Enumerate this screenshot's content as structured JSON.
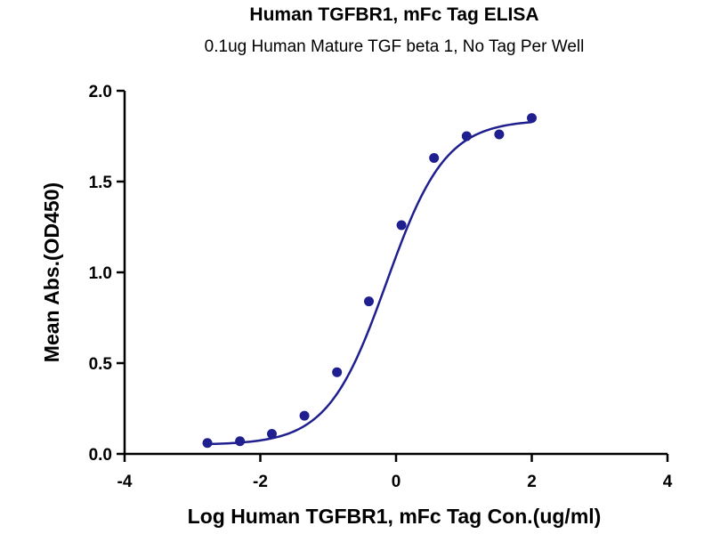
{
  "chart_data": {
    "type": "scatter",
    "title": "Human TGFBR1, mFc Tag ELISA",
    "subtitle": "0.1ug Human Mature TGF beta 1, No Tag Per Well",
    "xlabel": "Log Human TGFBR1, mFc Tag Con.(ug/ml)",
    "ylabel": "Mean Abs.(OD450)",
    "xlim": [
      -4,
      4
    ],
    "ylim": [
      0,
      2
    ],
    "xticks": [
      -4,
      -2,
      0,
      2,
      4
    ],
    "xtick_labels": [
      "-4",
      "-2",
      "0",
      "2",
      "4"
    ],
    "yticks": [
      0,
      0.5,
      1,
      1.5,
      2
    ],
    "ytick_labels": [
      "0.0",
      "0.5",
      "1.0",
      "1.5",
      "2.0"
    ],
    "grid": false,
    "colors": {
      "series": "#1f1f8f"
    },
    "series": [
      {
        "points": [
          {
            "x": -2.78,
            "y": 0.06
          },
          {
            "x": -2.3,
            "y": 0.07
          },
          {
            "x": -1.83,
            "y": 0.11
          },
          {
            "x": -1.35,
            "y": 0.21
          },
          {
            "x": -0.87,
            "y": 0.45
          },
          {
            "x": -0.4,
            "y": 0.84
          },
          {
            "x": 0.08,
            "y": 1.26
          },
          {
            "x": 0.56,
            "y": 1.63
          },
          {
            "x": 1.04,
            "y": 1.75
          },
          {
            "x": 1.52,
            "y": 1.76
          },
          {
            "x": 2.0,
            "y": 1.85
          }
        ],
        "fit": {
          "model": "4PL",
          "bottom": 0.05,
          "top": 1.84,
          "logEC50": -0.14,
          "hill": 1.0,
          "x_range": [
            -2.78,
            2.0
          ]
        }
      }
    ]
  }
}
